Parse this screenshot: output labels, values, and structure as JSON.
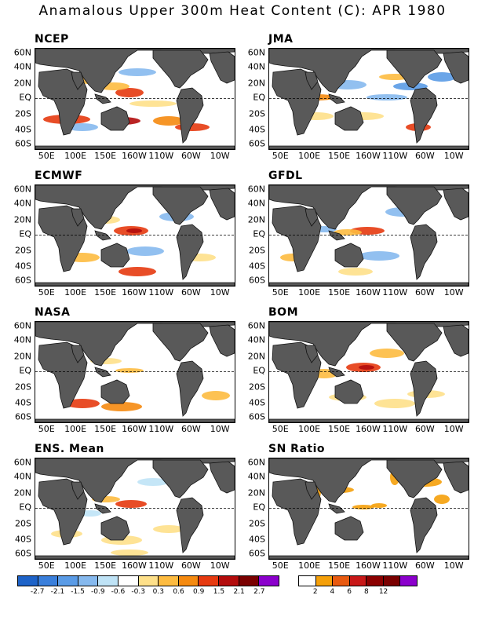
{
  "title": "Anamalous Upper 300m Heat Content (C): APR 1980",
  "panels": [
    {
      "name": "NCEP"
    },
    {
      "name": "JMA"
    },
    {
      "name": "ECMWF"
    },
    {
      "name": "GFDL"
    },
    {
      "name": "NASA"
    },
    {
      "name": "BOM"
    },
    {
      "name": "ENS. Mean"
    },
    {
      "name": "SN Ratio"
    }
  ],
  "lat_labels": [
    "60N",
    "40N",
    "20N",
    "EQ",
    "20S",
    "40S",
    "60S"
  ],
  "lon_labels": [
    "50E",
    "100E",
    "150E",
    "160W",
    "110W",
    "60W",
    "10W"
  ],
  "legend_anomaly": {
    "colors": [
      "#1e63c8",
      "#3a7fdb",
      "#5a9be6",
      "#86b9ee",
      "#bfe3f6",
      "#ffffff",
      "#fee08a",
      "#fdbb40",
      "#f58a10",
      "#e63a10",
      "#b30c0c",
      "#7a0000",
      "#8b00cc"
    ],
    "labels": [
      "-2.7",
      "-2.1",
      "-1.5",
      "-0.9",
      "-0.6",
      "-0.3",
      "0.3",
      "0.6",
      "0.9",
      "1.5",
      "2.1",
      "2.7"
    ]
  },
  "legend_sn": {
    "colors": [
      "#ffffff",
      "#f5a00a",
      "#e85a10",
      "#c81818",
      "#8b0000",
      "#7a0000",
      "#8b00cc"
    ],
    "labels": [
      "2",
      "4",
      "6",
      "8",
      "12"
    ]
  },
  "colors": {
    "land": "#595959",
    "land_edge": "#111111"
  }
}
